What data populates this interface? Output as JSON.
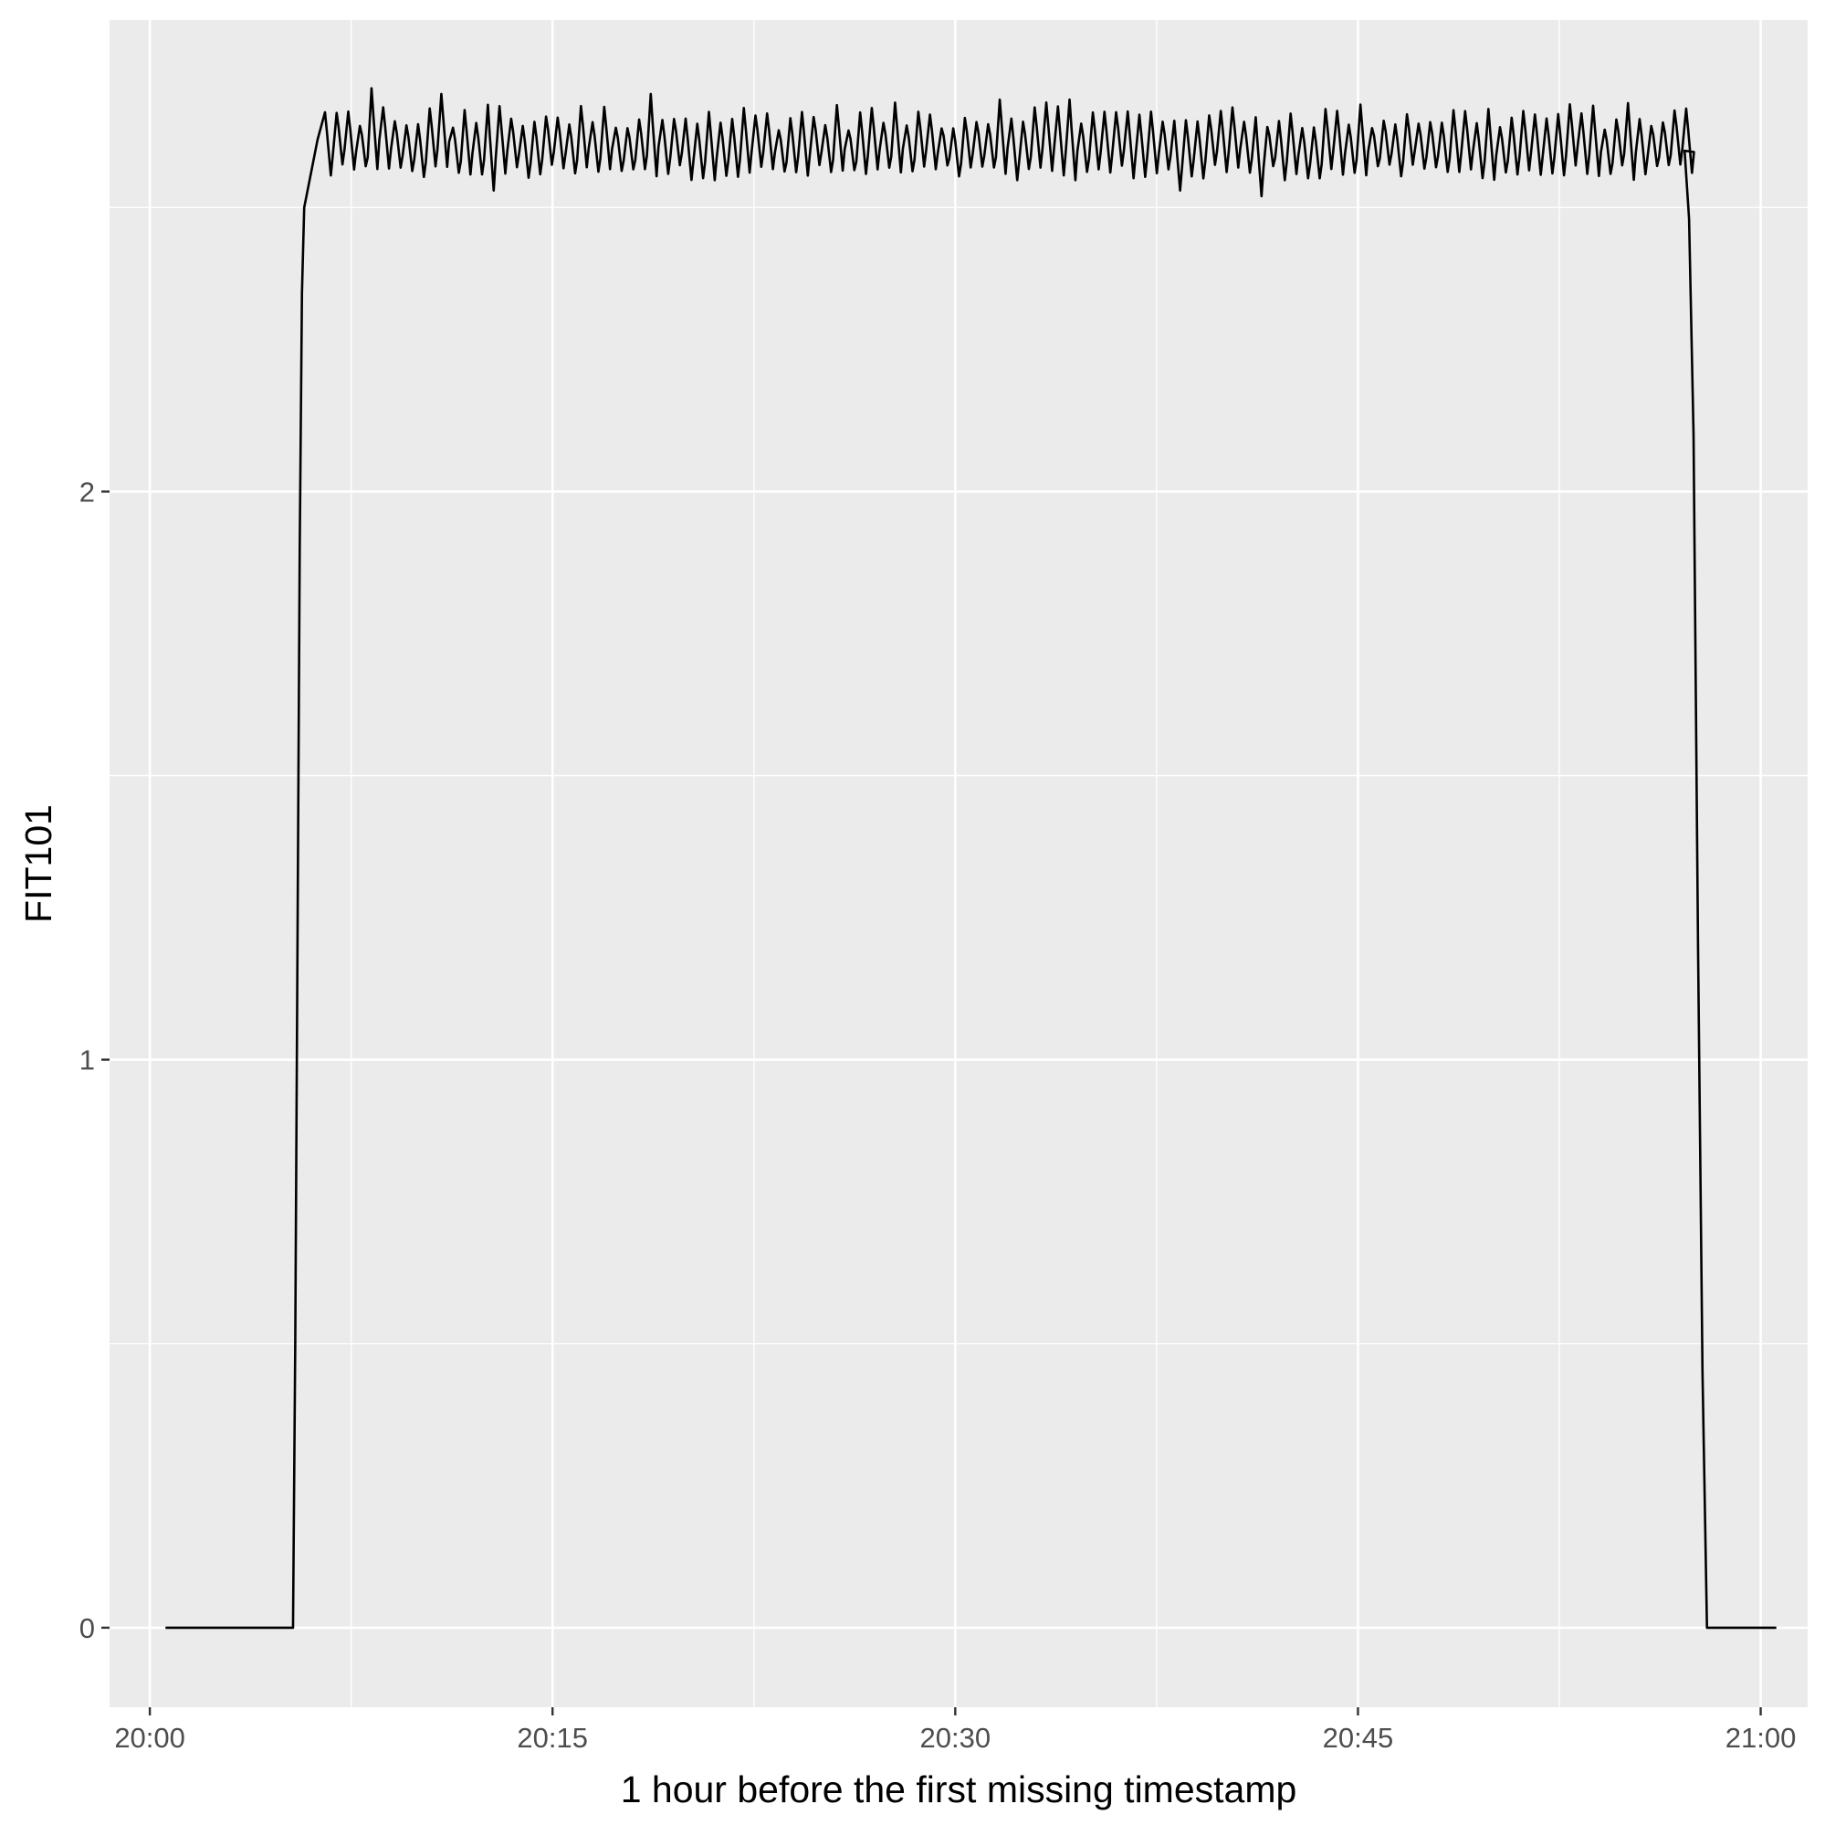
{
  "chart_data": {
    "type": "line",
    "title": "",
    "xlabel": "1 hour before the first missing timestamp",
    "ylabel": "FIT101",
    "x_unit": "time (HH:MM)",
    "xlim": [
      "19:58:30",
      "21:01:45"
    ],
    "ylim": [
      -0.14,
      2.83
    ],
    "x_ticks": [
      "20:00",
      "20:15",
      "20:30",
      "20:45",
      "21:00"
    ],
    "y_ticks": [
      0,
      1,
      2
    ],
    "grid": true,
    "legend": "none",
    "line_color": "#000000",
    "panel_color": "#ebebeb",
    "gridline_color": "#ffffff",
    "series": [
      {
        "name": "",
        "color": "#000000",
        "oscillation": {
          "x_range": [
            "20:06:25",
            "20:57:10"
          ],
          "period_seconds": 26,
          "low_typical": 2.56,
          "high_typical": 2.67,
          "high_extremes": [
            {
              "x": "20:08:00",
              "y": 2.71
            },
            {
              "x": "20:10:35",
              "y": 2.7
            },
            {
              "x": "20:18:30",
              "y": 2.7
            },
            {
              "x": "20:31:30",
              "y": 2.69
            },
            {
              "x": "20:34:00",
              "y": 2.69
            }
          ],
          "low_extremes": [
            {
              "x": "20:41:15",
              "y": 2.52
            },
            {
              "x": "20:38:10",
              "y": 2.53
            },
            {
              "x": "20:12:20",
              "y": 2.53
            }
          ]
        },
        "points": [
          {
            "x": "20:00:35",
            "y": 0
          },
          {
            "x": "20:05:20",
            "y": 0
          },
          {
            "x": "20:05:25",
            "y": 0.5
          },
          {
            "x": "20:05:30",
            "y": 1.2
          },
          {
            "x": "20:05:35",
            "y": 1.9
          },
          {
            "x": "20:05:40",
            "y": 2.35
          },
          {
            "x": "20:05:45",
            "y": 2.5
          },
          {
            "x": "20:06:00",
            "y": 2.56
          },
          {
            "x": "20:06:15",
            "y": 2.62
          },
          {
            "x": "20:57:10",
            "y": 2.6
          },
          {
            "x": "20:57:20",
            "y": 2.48
          },
          {
            "x": "20:57:30",
            "y": 2.1
          },
          {
            "x": "20:57:40",
            "y": 1.2
          },
          {
            "x": "20:57:50",
            "y": 0.45
          },
          {
            "x": "20:58:00",
            "y": 0
          },
          {
            "x": "21:00:35",
            "y": 0
          }
        ]
      }
    ]
  }
}
